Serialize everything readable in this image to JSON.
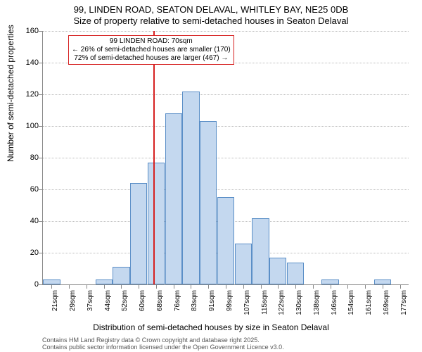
{
  "title_main": "99, LINDEN ROAD, SEATON DELAVAL, WHITLEY BAY, NE25 0DB",
  "title_sub": "Size of property relative to semi-detached houses in Seaton Delaval",
  "y_label": "Number of semi-detached properties",
  "x_label": "Distribution of semi-detached houses by size in Seaton Delaval",
  "footer1": "Contains HM Land Registry data © Crown copyright and database right 2025.",
  "footer2": "Contains public sector information licensed under the Open Government Licence v3.0.",
  "chart": {
    "type": "histogram",
    "ylim": [
      0,
      160
    ],
    "ytick_step": 20,
    "y_ticks": [
      0,
      20,
      40,
      60,
      80,
      100,
      120,
      140,
      160
    ],
    "x_categories": [
      "21sqm",
      "29sqm",
      "37sqm",
      "44sqm",
      "52sqm",
      "60sqm",
      "68sqm",
      "76sqm",
      "83sqm",
      "91sqm",
      "99sqm",
      "107sqm",
      "115sqm",
      "122sqm",
      "130sqm",
      "138sqm",
      "146sqm",
      "154sqm",
      "161sqm",
      "169sqm",
      "177sqm"
    ],
    "values": [
      3,
      0,
      0,
      3,
      11,
      64,
      77,
      108,
      122,
      103,
      55,
      26,
      42,
      17,
      14,
      0,
      3,
      0,
      0,
      3,
      0
    ],
    "bar_fill": "#c4d8ef",
    "bar_stroke": "#5b8fc7",
    "background_color": "#ffffff",
    "grid_color": "#bbbbbb",
    "reference_index": 6.35,
    "reference_color": "#d62020",
    "annotation": {
      "line1": "99 LINDEN ROAD: 70sqm",
      "line2": "← 26% of semi-detached houses are smaller (170)",
      "line3": "72% of semi-detached houses are larger (467) →",
      "border_color": "#d62020"
    },
    "title_fontsize": 13,
    "label_fontsize": 12,
    "tick_fontsize": 11,
    "xtick_fontsize": 10,
    "annotation_fontsize": 10
  }
}
